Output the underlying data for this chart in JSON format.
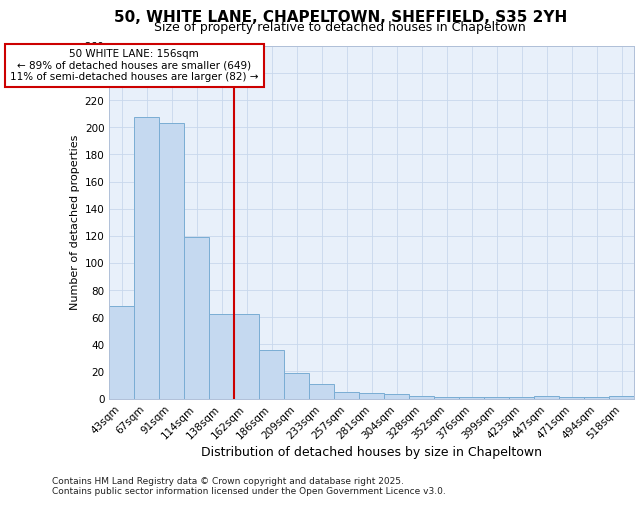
{
  "title1": "50, WHITE LANE, CHAPELTOWN, SHEFFIELD, S35 2YH",
  "title2": "Size of property relative to detached houses in Chapeltown",
  "xlabel": "Distribution of detached houses by size in Chapeltown",
  "ylabel": "Number of detached properties",
  "footer1": "Contains HM Land Registry data © Crown copyright and database right 2025.",
  "footer2": "Contains public sector information licensed under the Open Government Licence v3.0.",
  "annotation_line1": "50 WHITE LANE: 156sqm",
  "annotation_line2": "← 89% of detached houses are smaller (649)",
  "annotation_line3": "11% of semi-detached houses are larger (82) →",
  "bar_color": "#c5d9f0",
  "bar_edge_color": "#7aadd4",
  "vline_color": "#cc0000",
  "vline_x_index": 5,
  "categories": [
    "43sqm",
    "67sqm",
    "91sqm",
    "114sqm",
    "138sqm",
    "162sqm",
    "186sqm",
    "209sqm",
    "233sqm",
    "257sqm",
    "281sqm",
    "304sqm",
    "328sqm",
    "352sqm",
    "376sqm",
    "399sqm",
    "423sqm",
    "447sqm",
    "471sqm",
    "494sqm",
    "518sqm"
  ],
  "values": [
    68,
    208,
    203,
    119,
    62,
    62,
    36,
    19,
    11,
    5,
    4,
    3,
    2,
    1,
    1,
    1,
    1,
    2,
    1,
    1,
    2
  ],
  "ylim": [
    0,
    260
  ],
  "yticks": [
    0,
    20,
    40,
    60,
    80,
    100,
    120,
    140,
    160,
    180,
    200,
    220,
    240,
    260
  ],
  "grid_color": "#c8d8ec",
  "bg_color": "#e8f0fa",
  "title1_fontsize": 11,
  "title2_fontsize": 9,
  "xlabel_fontsize": 9,
  "ylabel_fontsize": 8,
  "tick_fontsize": 7.5,
  "footer_fontsize": 6.5,
  "annot_fontsize": 7.5
}
